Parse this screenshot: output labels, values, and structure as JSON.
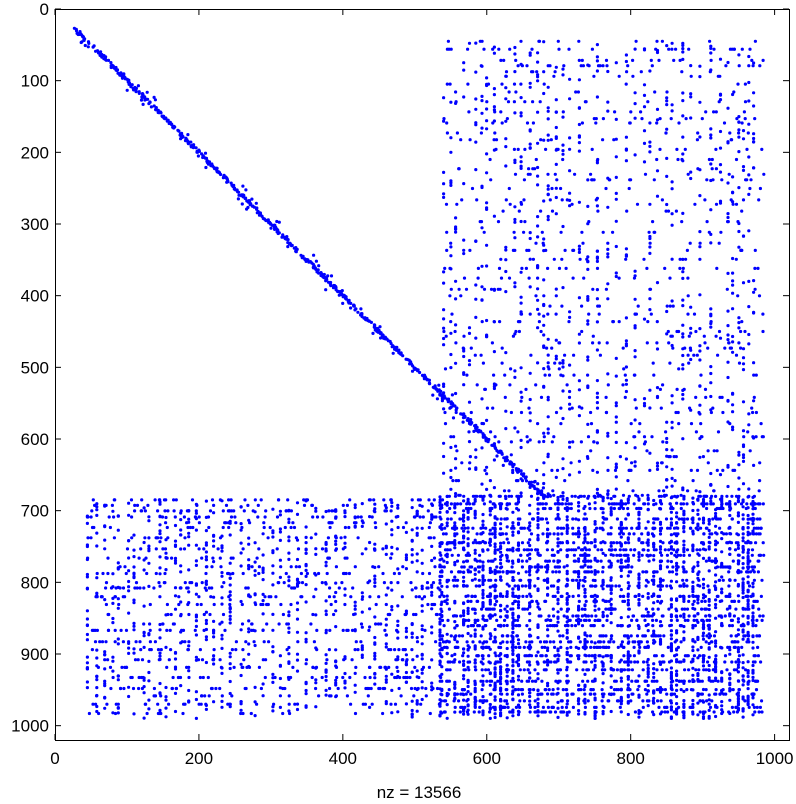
{
  "chart_data": {
    "type": "scatter",
    "title": "",
    "xlabel": "nz = 13566",
    "ylabel": "",
    "xlim": [
      0,
      1020
    ],
    "ylim": [
      1020,
      0
    ],
    "y_axis_reversed": true,
    "x_ticks": [
      "0",
      "200",
      "400",
      "600",
      "800",
      "1000"
    ],
    "y_ticks": [
      "0",
      "100",
      "200",
      "300",
      "400",
      "500",
      "600",
      "700",
      "800",
      "900",
      "1000"
    ],
    "grid": false,
    "legend": "none",
    "marker_color": "#0000ff",
    "series": [
      {
        "regions": [
          {
            "region": "diagonal band",
            "x_range": [
              28,
              680
            ],
            "y_range": [
              28,
              680
            ],
            "density": "high"
          },
          {
            "region": "upper-right block",
            "x_range": [
              540,
              985
            ],
            "y_range": [
              45,
              690
            ],
            "density": "medium"
          },
          {
            "region": "lower-left block",
            "x_range": [
              45,
              540
            ],
            "y_range": [
              685,
              990
            ],
            "density": "medium"
          },
          {
            "region": "lower-right dense block",
            "x_range": [
              535,
              985
            ],
            "y_range": [
              680,
              990
            ],
            "density": "very high"
          }
        ]
      }
    ]
  }
}
